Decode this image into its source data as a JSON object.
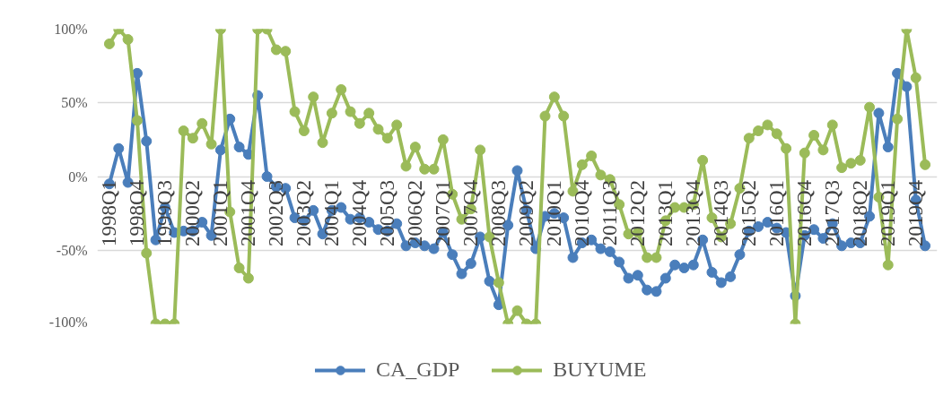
{
  "chart_data": {
    "type": "line",
    "categories": [
      "1998Q1",
      null,
      null,
      "1998Q4",
      null,
      null,
      "1999Q3",
      null,
      null,
      "2000Q2",
      null,
      null,
      "2001Q1",
      null,
      null,
      "2001Q4",
      null,
      null,
      "2002Q3",
      null,
      null,
      "2003Q2",
      null,
      null,
      "2004Q1",
      null,
      null,
      "2004Q4",
      null,
      null,
      "2005Q3",
      null,
      null,
      "2006Q2",
      null,
      null,
      "2007Q1",
      null,
      null,
      "2007Q4",
      null,
      null,
      "2008Q3",
      null,
      null,
      "2009Q2",
      null,
      null,
      "2010Q1",
      null,
      null,
      "2010Q4",
      null,
      null,
      "2011Q3",
      null,
      null,
      "2012Q2",
      null,
      null,
      "2013Q1",
      null,
      null,
      "2013Q4",
      null,
      null,
      "2014Q3",
      null,
      null,
      "2015Q2",
      null,
      null,
      "2016Q1",
      null,
      null,
      "2016Q4",
      null,
      null,
      "2017Q3",
      null,
      null,
      "2018Q2",
      null,
      null,
      "2019Q1",
      null,
      null,
      "2019Q4",
      null
    ],
    "series": [
      {
        "name": "CA_GDP",
        "color": "#4a7ebb",
        "values": [
          -5,
          19,
          -4,
          70,
          24,
          -43,
          -21,
          -38,
          -37,
          -37,
          -31,
          -40,
          18,
          39,
          20,
          15,
          55,
          0,
          -7,
          -8,
          -28,
          -30,
          -23,
          -39,
          -23,
          -21,
          -29,
          -28,
          -31,
          -36,
          -37,
          -32,
          -47,
          -45,
          -47,
          -49,
          -38,
          -53,
          -66,
          -59,
          -41,
          -71,
          -87,
          -33,
          4,
          -23,
          -49,
          -27,
          -25,
          -28,
          -55,
          -45,
          -43,
          -49,
          -51,
          -58,
          -69,
          -67,
          -77,
          -78,
          -69,
          -60,
          -62,
          -60,
          -43,
          -65,
          -72,
          -68,
          -53,
          -37,
          -34,
          -31,
          -35,
          -38,
          -81,
          -40,
          -36,
          -42,
          -32,
          -47,
          -45,
          -45,
          -27,
          43,
          20,
          70,
          61,
          -16,
          -47
        ]
      },
      {
        "name": "BUYUME",
        "color": "#9bbb59",
        "values": [
          90,
          100,
          93,
          38,
          -52,
          -100,
          -100,
          -100,
          31,
          26,
          36,
          22,
          100,
          -24,
          -62,
          -69,
          100,
          100,
          86,
          85,
          44,
          31,
          54,
          23,
          43,
          59,
          44,
          36,
          43,
          32,
          26,
          35,
          7,
          20,
          5,
          5,
          25,
          -12,
          -29,
          -22,
          18,
          -41,
          -72,
          -100,
          -91,
          -100,
          -100,
          41,
          54,
          41,
          -10,
          8,
          14,
          1,
          -2,
          -19,
          -39,
          -38,
          -55,
          -55,
          -30,
          -21,
          -21,
          -19,
          11,
          -28,
          -41,
          -32,
          -8,
          26,
          31,
          35,
          29,
          19,
          -100,
          16,
          28,
          18,
          35,
          6,
          9,
          11,
          47,
          -14,
          -60,
          39,
          100,
          67,
          8
        ]
      }
    ],
    "ylim": [
      -100,
      100
    ],
    "yticks": [
      {
        "value": -100,
        "label": "-100%"
      },
      {
        "value": -50,
        "label": "-50%"
      },
      {
        "value": 0,
        "label": "0%"
      },
      {
        "value": 50,
        "label": "50%"
      },
      {
        "value": 100,
        "label": "100%"
      }
    ],
    "grid": "y",
    "legend": "bottom",
    "marker": "circle",
    "line_style": "solid"
  }
}
